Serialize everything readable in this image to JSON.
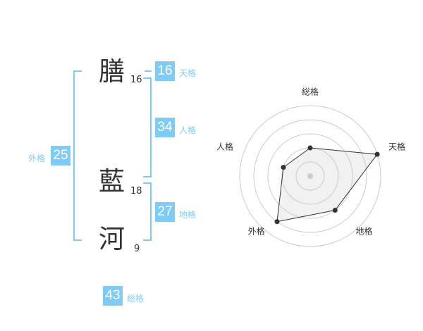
{
  "name": {
    "chars": [
      {
        "char": "膳",
        "strokes": "16"
      },
      {
        "char": "藍",
        "strokes": "18"
      },
      {
        "char": "河",
        "strokes": "9"
      }
    ]
  },
  "fortunes": {
    "tenkaku": {
      "label": "天格",
      "value": "16"
    },
    "jinkaku": {
      "label": "人格",
      "value": "34"
    },
    "chikaku": {
      "label": "地格",
      "value": "27"
    },
    "gaikaku": {
      "label": "外格",
      "value": "25"
    },
    "soukaku": {
      "label": "総格",
      "value": "43"
    }
  },
  "colors": {
    "accent": "#7fcbf5",
    "text": "#333333"
  },
  "chart_data": {
    "type": "radar",
    "axes": [
      "総格",
      "天格",
      "地格",
      "外格",
      "人格"
    ],
    "values": [
      2,
      5,
      3,
      4,
      2
    ],
    "range": [
      0,
      5
    ],
    "rings": 5
  }
}
